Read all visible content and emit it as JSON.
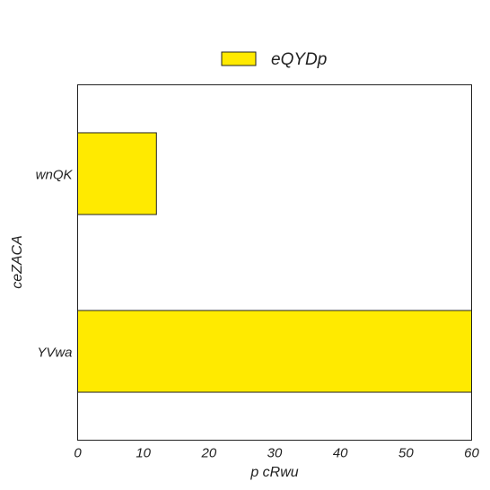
{
  "chart_data": {
    "type": "bar",
    "orientation": "horizontal",
    "title": "",
    "xlabel": "p cRwu",
    "ylabel": "ceZACA",
    "categories": [
      "wnQK",
      "YVwa"
    ],
    "series": [
      {
        "name": "eQYDp",
        "values": [
          12,
          60
        ],
        "color": "#ffea00"
      }
    ],
    "xlim": [
      0,
      60
    ],
    "xticks": [
      0,
      10,
      20,
      30,
      40,
      50,
      60
    ],
    "grid": false,
    "legend": "top-center"
  }
}
